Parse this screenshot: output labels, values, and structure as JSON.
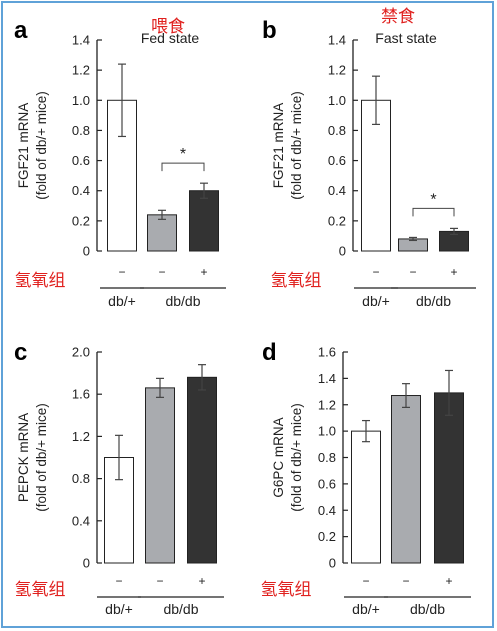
{
  "colors": {
    "border": "#5fa2d8",
    "annotation_red": "#e0201e",
    "bar_dbplus": "#ffffff",
    "bar_dbdb_minus": "#a9abaf",
    "bar_dbdb_plus": "#333333"
  },
  "annotations": {
    "fed_cn": "喂食",
    "fast_cn": "禁食",
    "row_label_cn": "氢氧组"
  },
  "chart_data": [
    {
      "panel": "a",
      "type": "bar",
      "title": "Fed state",
      "ylabel_line1": "FGF21 mRNA",
      "ylabel_line2": "(fold of db/+ mice)",
      "ylim": [
        0,
        1.4
      ],
      "yticks": [
        "0",
        "0.2",
        "0.4",
        "0.6",
        "0.8",
        "1.0",
        "1.2",
        "1.4"
      ],
      "categories": [
        "db/+ −",
        "db/db −",
        "db/db +"
      ],
      "treatment": [
        "−",
        "−",
        "+"
      ],
      "groups": [
        "db/+",
        "db/db"
      ],
      "values": [
        1.0,
        0.24,
        0.4
      ],
      "errors": [
        0.24,
        0.03,
        0.05
      ],
      "significance": "*"
    },
    {
      "panel": "b",
      "type": "bar",
      "title": "Fast state",
      "ylabel_line1": "FGF21 mRNA",
      "ylabel_line2": "(fold of db/+ mice)",
      "ylim": [
        0,
        1.4
      ],
      "yticks": [
        "0",
        "0.2",
        "0.4",
        "0.6",
        "0.8",
        "1.0",
        "1.2",
        "1.4"
      ],
      "categories": [
        "db/+ −",
        "db/db −",
        "db/db +"
      ],
      "treatment": [
        "−",
        "−",
        "+"
      ],
      "groups": [
        "db/+",
        "db/db"
      ],
      "values": [
        1.0,
        0.08,
        0.13
      ],
      "errors": [
        0.16,
        0.01,
        0.02
      ],
      "significance": "*"
    },
    {
      "panel": "c",
      "type": "bar",
      "title": "",
      "ylabel_line1": "PEPCK mRNA",
      "ylabel_line2": "(fold of db/+ mice)",
      "ylim": [
        0,
        2.0
      ],
      "yticks": [
        "0",
        "0.4",
        "0.8",
        "1.2",
        "1.6",
        "2.0"
      ],
      "categories": [
        "db/+ −",
        "db/db −",
        "db/db +"
      ],
      "treatment": [
        "−",
        "−",
        "+"
      ],
      "groups": [
        "db/+",
        "db/db"
      ],
      "values": [
        1.0,
        1.66,
        1.76
      ],
      "errors": [
        0.21,
        0.09,
        0.12
      ],
      "significance": ""
    },
    {
      "panel": "d",
      "type": "bar",
      "title": "",
      "ylabel_line1": "G6PC mRNA",
      "ylabel_line2": "(fold of db/+ mice)",
      "ylim": [
        0,
        1.6
      ],
      "yticks": [
        "0",
        "0.2",
        "0.4",
        "0.6",
        "0.8",
        "1.0",
        "1.2",
        "1.4",
        "1.6"
      ],
      "categories": [
        "db/+ −",
        "db/db −",
        "db/db +"
      ],
      "treatment": [
        "−",
        "−",
        "+"
      ],
      "groups": [
        "db/+",
        "db/db"
      ],
      "values": [
        1.0,
        1.27,
        1.29
      ],
      "errors": [
        0.08,
        0.09,
        0.17
      ],
      "significance": ""
    }
  ]
}
